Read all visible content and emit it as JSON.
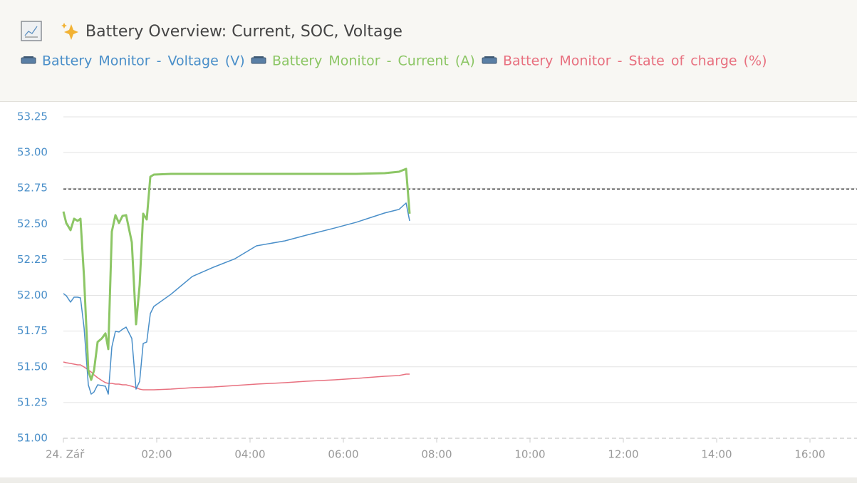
{
  "chart_data": {
    "type": "line",
    "title": "Battery Overview: Current, SOC, Voltage",
    "x": [
      0,
      0.061,
      0.153,
      0.229,
      0.305,
      0.366,
      0.443,
      0.534,
      0.595,
      0.656,
      0.733,
      0.824,
      0.901,
      0.962,
      1.038,
      1.115,
      1.191,
      1.267,
      1.344,
      1.466,
      1.557,
      1.634,
      1.71,
      1.786,
      1.863,
      1.939,
      2.305,
      2.763,
      3.221,
      3.679,
      4.137,
      4.748,
      5.206,
      5.817,
      6.275,
      6.885,
      7.191,
      7.344,
      7.42
    ],
    "series": [
      {
        "name": "Battery Monitor - Voltage (V)",
        "color": "#4a8fc9",
        "width": 1.5,
        "values": [
          52.013,
          51.998,
          51.953,
          51.988,
          51.988,
          51.983,
          51.773,
          51.374,
          51.309,
          51.324,
          51.374,
          51.369,
          51.364,
          51.309,
          51.639,
          51.749,
          51.744,
          51.763,
          51.778,
          51.699,
          51.344,
          51.399,
          51.664,
          51.674,
          51.873,
          51.923,
          52.008,
          52.133,
          52.198,
          52.257,
          52.347,
          52.382,
          52.422,
          52.472,
          52.512,
          52.577,
          52.602,
          52.647,
          52.522
        ]
      },
      {
        "name": "Battery Monitor - Current (A)",
        "color": "#8cc665",
        "width": 3,
        "values": [
          52.587,
          52.507,
          52.457,
          52.537,
          52.522,
          52.537,
          52.123,
          51.474,
          51.409,
          51.474,
          51.674,
          51.699,
          51.734,
          51.624,
          52.447,
          52.562,
          52.507,
          52.557,
          52.562,
          52.372,
          51.798,
          52.073,
          52.572,
          52.532,
          52.831,
          52.846,
          52.851,
          52.851,
          52.851,
          52.851,
          52.851,
          52.851,
          52.851,
          52.851,
          52.851,
          52.856,
          52.866,
          52.886,
          52.572
        ]
      },
      {
        "name": "Battery Monitor - State of charge (%)",
        "color": "#e8707f",
        "width": 1.5,
        "values": [
          51.534,
          51.529,
          51.524,
          51.519,
          51.514,
          51.514,
          51.499,
          51.479,
          51.464,
          51.444,
          51.424,
          51.404,
          51.389,
          51.384,
          51.384,
          51.379,
          51.379,
          51.374,
          51.374,
          51.364,
          51.354,
          51.344,
          51.339,
          51.339,
          51.339,
          51.339,
          51.344,
          51.354,
          51.359,
          51.369,
          51.379,
          51.389,
          51.399,
          51.409,
          51.419,
          51.434,
          51.439,
          51.449,
          51.449
        ]
      }
    ],
    "ref_line": 52.745,
    "xlim": [
      0,
      17
    ],
    "ylim": [
      51,
      53.25
    ],
    "xticks": [
      {
        "value": 0,
        "label": "24. Zář"
      },
      {
        "value": 2,
        "label": "02:00"
      },
      {
        "value": 4,
        "label": "04:00"
      },
      {
        "value": 6,
        "label": "06:00"
      },
      {
        "value": 8,
        "label": "08:00"
      },
      {
        "value": 10,
        "label": "10:00"
      },
      {
        "value": 12,
        "label": "12:00"
      },
      {
        "value": 14,
        "label": "14:00"
      },
      {
        "value": 16,
        "label": "16:00"
      }
    ],
    "yticks": [
      {
        "value": 51,
        "label": "51.00"
      },
      51.25,
      {
        "value": 51.5,
        "label": "51.50"
      },
      51.75,
      {
        "value": 52,
        "label": "52.00"
      },
      52.25,
      {
        "value": 52.5,
        "label": "52.50"
      },
      52.75,
      {
        "value": 53,
        "label": "53.00"
      },
      53.25
    ],
    "grid": true
  }
}
